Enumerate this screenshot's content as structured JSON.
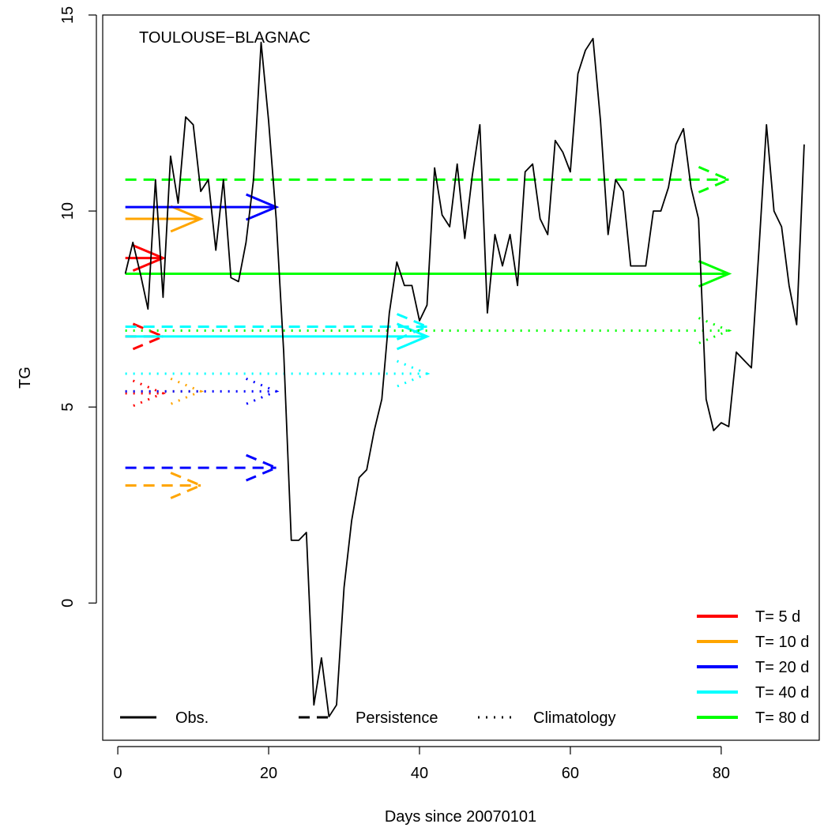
{
  "chart_data": {
    "type": "line",
    "title": "TOULOUSE−BLAGNAC",
    "xlabel": "Days since 20070101",
    "ylabel": "TG",
    "xlim": [
      -2,
      93
    ],
    "ylim": [
      -3.5,
      15
    ],
    "x_ticks": [
      0,
      20,
      40,
      60,
      80
    ],
    "y_ticks": [
      0,
      5,
      10,
      15
    ],
    "x_tick_labels": [
      "0",
      "20",
      "40",
      "60",
      "80"
    ],
    "y_tick_labels": [
      "0",
      "5",
      "10",
      "15"
    ],
    "grid": false,
    "observations": {
      "name": "Obs.",
      "color": "#000000",
      "linestyle": "solid",
      "x": [
        1,
        2,
        3,
        4,
        5,
        6,
        7,
        8,
        9,
        10,
        11,
        12,
        13,
        14,
        15,
        16,
        17,
        18,
        19,
        20,
        21,
        22,
        23,
        24,
        25,
        26,
        27,
        28,
        29,
        30,
        31,
        32,
        33,
        34,
        35,
        36,
        37,
        38,
        39,
        40,
        41,
        42,
        43,
        44,
        45,
        46,
        47,
        48,
        49,
        50,
        51,
        52,
        53,
        54,
        55,
        56,
        57,
        58,
        59,
        60,
        61,
        62,
        63,
        64,
        65,
        66,
        67,
        68,
        69,
        70,
        71,
        72,
        73,
        74,
        75,
        76,
        77,
        78,
        79,
        80,
        81,
        82,
        83,
        84,
        85,
        86,
        87,
        88,
        89,
        90,
        91
      ],
      "y": [
        8.4,
        9.2,
        8.4,
        7.5,
        10.8,
        7.8,
        11.4,
        10.2,
        12.4,
        12.2,
        10.5,
        10.8,
        9.0,
        10.8,
        8.3,
        8.2,
        9.2,
        10.8,
        14.3,
        12.3,
        9.8,
        6.4,
        1.6,
        1.6,
        1.8,
        -2.6,
        -1.4,
        -2.9,
        -2.6,
        0.4,
        2.1,
        3.2,
        3.4,
        4.4,
        5.2,
        7.4,
        8.7,
        8.1,
        8.1,
        7.2,
        7.6,
        11.1,
        9.9,
        9.6,
        11.2,
        9.3,
        10.9,
        12.2,
        7.4,
        9.4,
        8.6,
        9.4,
        8.1,
        11.0,
        11.2,
        9.8,
        9.4,
        11.8,
        11.5,
        11.0,
        13.5,
        14.1,
        14.4,
        12.3,
        9.4,
        10.8,
        10.5,
        8.6,
        8.6,
        8.6,
        10.0,
        10.0,
        10.6,
        11.7,
        12.1,
        10.6,
        9.8,
        5.2,
        4.4,
        4.6,
        4.5,
        6.4,
        6.2,
        6.0,
        9.0,
        12.2,
        10.0,
        9.6,
        8.1,
        7.1,
        11.7
      ]
    },
    "forecasts": [
      {
        "name": "T= 5 d",
        "color": "#ff0000",
        "method": "Obs.",
        "x_start": 1,
        "x_end": 6,
        "value": 8.8
      },
      {
        "name": "T= 5 d",
        "color": "#ff0000",
        "method": "Persistence",
        "x_start": 1,
        "x_end": 6,
        "value": 6.8
      },
      {
        "name": "T= 5 d",
        "color": "#ff0000",
        "method": "Climatology",
        "x_start": 1,
        "x_end": 6,
        "value": 5.35
      },
      {
        "name": "T= 10 d",
        "color": "#ffa500",
        "method": "Obs.",
        "x_start": 1,
        "x_end": 11,
        "value": 9.8
      },
      {
        "name": "T= 10 d",
        "color": "#ffa500",
        "method": "Persistence",
        "x_start": 1,
        "x_end": 11,
        "value": 3.0
      },
      {
        "name": "T= 10 d",
        "color": "#ffa500",
        "method": "Climatology",
        "x_start": 1,
        "x_end": 11,
        "value": 5.4
      },
      {
        "name": "T= 20 d",
        "color": "#0000ff",
        "method": "Obs.",
        "x_start": 1,
        "x_end": 21,
        "value": 10.1
      },
      {
        "name": "T= 20 d",
        "color": "#0000ff",
        "method": "Persistence",
        "x_start": 1,
        "x_end": 21,
        "value": 3.45
      },
      {
        "name": "T= 20 d",
        "color": "#0000ff",
        "method": "Climatology",
        "x_start": 1,
        "x_end": 21,
        "value": 5.4
      },
      {
        "name": "T= 40 d",
        "color": "#00ffff",
        "method": "Obs.",
        "x_start": 1,
        "x_end": 41,
        "value": 6.8
      },
      {
        "name": "T= 40 d",
        "color": "#00ffff",
        "method": "Persistence",
        "x_start": 1,
        "x_end": 41,
        "value": 7.05
      },
      {
        "name": "T= 40 d",
        "color": "#00ffff",
        "method": "Climatology",
        "x_start": 1,
        "x_end": 41,
        "value": 5.85
      },
      {
        "name": "T= 80 d",
        "color": "#00ff00",
        "method": "Obs.",
        "x_start": 1,
        "x_end": 81,
        "value": 8.4
      },
      {
        "name": "T= 80 d",
        "color": "#00ff00",
        "method": "Persistence",
        "x_start": 1,
        "x_end": 81,
        "value": 10.8
      },
      {
        "name": "T= 80 d",
        "color": "#00ff00",
        "method": "Climatology",
        "x_start": 1,
        "x_end": 81,
        "value": 6.95
      }
    ],
    "legend_horizons": {
      "placement": "bottom-right",
      "entries": [
        {
          "label": "T= 5 d",
          "color": "#ff0000"
        },
        {
          "label": "T= 10 d",
          "color": "#ffa500"
        },
        {
          "label": "T= 20 d",
          "color": "#0000ff"
        },
        {
          "label": "T= 40 d",
          "color": "#00ffff"
        },
        {
          "label": "T= 80 d",
          "color": "#00ff00"
        }
      ]
    },
    "legend_methods": {
      "placement": "bottom",
      "entries": [
        {
          "label": "Obs.",
          "linestyle": "solid"
        },
        {
          "label": "Persistence",
          "linestyle": "dashed"
        },
        {
          "label": "Climatology",
          "linestyle": "dotted"
        }
      ]
    }
  }
}
